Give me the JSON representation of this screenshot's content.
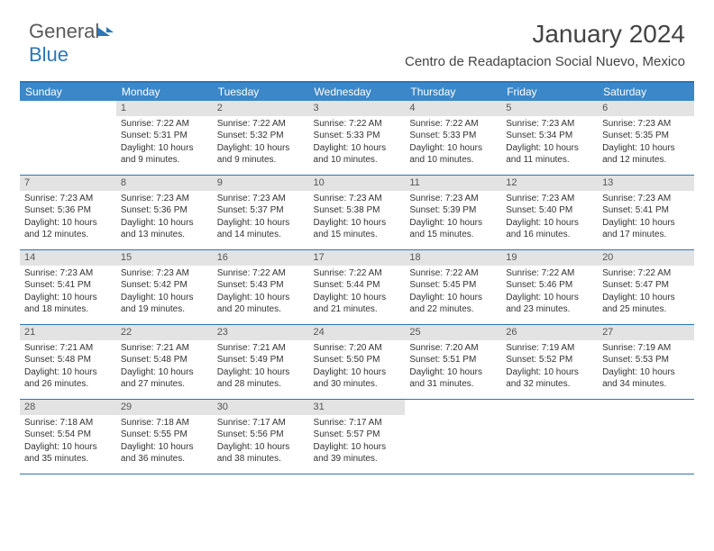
{
  "logo": {
    "text1": "General",
    "text2": "Blue"
  },
  "title": "January 2024",
  "location": "Centro de Readaptacion Social Nuevo, Mexico",
  "daynames": [
    "Sunday",
    "Monday",
    "Tuesday",
    "Wednesday",
    "Thursday",
    "Friday",
    "Saturday"
  ],
  "colors": {
    "header_bg": "#3b87c8",
    "border": "#2b76b8",
    "numbar": "#e3e3e3"
  },
  "weeks": [
    [
      {
        "n": "",
        "sr": "",
        "ss": "",
        "dl": ""
      },
      {
        "n": "1",
        "sr": "Sunrise: 7:22 AM",
        "ss": "Sunset: 5:31 PM",
        "dl": "Daylight: 10 hours and 9 minutes."
      },
      {
        "n": "2",
        "sr": "Sunrise: 7:22 AM",
        "ss": "Sunset: 5:32 PM",
        "dl": "Daylight: 10 hours and 9 minutes."
      },
      {
        "n": "3",
        "sr": "Sunrise: 7:22 AM",
        "ss": "Sunset: 5:33 PM",
        "dl": "Daylight: 10 hours and 10 minutes."
      },
      {
        "n": "4",
        "sr": "Sunrise: 7:22 AM",
        "ss": "Sunset: 5:33 PM",
        "dl": "Daylight: 10 hours and 10 minutes."
      },
      {
        "n": "5",
        "sr": "Sunrise: 7:23 AM",
        "ss": "Sunset: 5:34 PM",
        "dl": "Daylight: 10 hours and 11 minutes."
      },
      {
        "n": "6",
        "sr": "Sunrise: 7:23 AM",
        "ss": "Sunset: 5:35 PM",
        "dl": "Daylight: 10 hours and 12 minutes."
      }
    ],
    [
      {
        "n": "7",
        "sr": "Sunrise: 7:23 AM",
        "ss": "Sunset: 5:36 PM",
        "dl": "Daylight: 10 hours and 12 minutes."
      },
      {
        "n": "8",
        "sr": "Sunrise: 7:23 AM",
        "ss": "Sunset: 5:36 PM",
        "dl": "Daylight: 10 hours and 13 minutes."
      },
      {
        "n": "9",
        "sr": "Sunrise: 7:23 AM",
        "ss": "Sunset: 5:37 PM",
        "dl": "Daylight: 10 hours and 14 minutes."
      },
      {
        "n": "10",
        "sr": "Sunrise: 7:23 AM",
        "ss": "Sunset: 5:38 PM",
        "dl": "Daylight: 10 hours and 15 minutes."
      },
      {
        "n": "11",
        "sr": "Sunrise: 7:23 AM",
        "ss": "Sunset: 5:39 PM",
        "dl": "Daylight: 10 hours and 15 minutes."
      },
      {
        "n": "12",
        "sr": "Sunrise: 7:23 AM",
        "ss": "Sunset: 5:40 PM",
        "dl": "Daylight: 10 hours and 16 minutes."
      },
      {
        "n": "13",
        "sr": "Sunrise: 7:23 AM",
        "ss": "Sunset: 5:41 PM",
        "dl": "Daylight: 10 hours and 17 minutes."
      }
    ],
    [
      {
        "n": "14",
        "sr": "Sunrise: 7:23 AM",
        "ss": "Sunset: 5:41 PM",
        "dl": "Daylight: 10 hours and 18 minutes."
      },
      {
        "n": "15",
        "sr": "Sunrise: 7:23 AM",
        "ss": "Sunset: 5:42 PM",
        "dl": "Daylight: 10 hours and 19 minutes."
      },
      {
        "n": "16",
        "sr": "Sunrise: 7:22 AM",
        "ss": "Sunset: 5:43 PM",
        "dl": "Daylight: 10 hours and 20 minutes."
      },
      {
        "n": "17",
        "sr": "Sunrise: 7:22 AM",
        "ss": "Sunset: 5:44 PM",
        "dl": "Daylight: 10 hours and 21 minutes."
      },
      {
        "n": "18",
        "sr": "Sunrise: 7:22 AM",
        "ss": "Sunset: 5:45 PM",
        "dl": "Daylight: 10 hours and 22 minutes."
      },
      {
        "n": "19",
        "sr": "Sunrise: 7:22 AM",
        "ss": "Sunset: 5:46 PM",
        "dl": "Daylight: 10 hours and 23 minutes."
      },
      {
        "n": "20",
        "sr": "Sunrise: 7:22 AM",
        "ss": "Sunset: 5:47 PM",
        "dl": "Daylight: 10 hours and 25 minutes."
      }
    ],
    [
      {
        "n": "21",
        "sr": "Sunrise: 7:21 AM",
        "ss": "Sunset: 5:48 PM",
        "dl": "Daylight: 10 hours and 26 minutes."
      },
      {
        "n": "22",
        "sr": "Sunrise: 7:21 AM",
        "ss": "Sunset: 5:48 PM",
        "dl": "Daylight: 10 hours and 27 minutes."
      },
      {
        "n": "23",
        "sr": "Sunrise: 7:21 AM",
        "ss": "Sunset: 5:49 PM",
        "dl": "Daylight: 10 hours and 28 minutes."
      },
      {
        "n": "24",
        "sr": "Sunrise: 7:20 AM",
        "ss": "Sunset: 5:50 PM",
        "dl": "Daylight: 10 hours and 30 minutes."
      },
      {
        "n": "25",
        "sr": "Sunrise: 7:20 AM",
        "ss": "Sunset: 5:51 PM",
        "dl": "Daylight: 10 hours and 31 minutes."
      },
      {
        "n": "26",
        "sr": "Sunrise: 7:19 AM",
        "ss": "Sunset: 5:52 PM",
        "dl": "Daylight: 10 hours and 32 minutes."
      },
      {
        "n": "27",
        "sr": "Sunrise: 7:19 AM",
        "ss": "Sunset: 5:53 PM",
        "dl": "Daylight: 10 hours and 34 minutes."
      }
    ],
    [
      {
        "n": "28",
        "sr": "Sunrise: 7:18 AM",
        "ss": "Sunset: 5:54 PM",
        "dl": "Daylight: 10 hours and 35 minutes."
      },
      {
        "n": "29",
        "sr": "Sunrise: 7:18 AM",
        "ss": "Sunset: 5:55 PM",
        "dl": "Daylight: 10 hours and 36 minutes."
      },
      {
        "n": "30",
        "sr": "Sunrise: 7:17 AM",
        "ss": "Sunset: 5:56 PM",
        "dl": "Daylight: 10 hours and 38 minutes."
      },
      {
        "n": "31",
        "sr": "Sunrise: 7:17 AM",
        "ss": "Sunset: 5:57 PM",
        "dl": "Daylight: 10 hours and 39 minutes."
      },
      {
        "n": "",
        "sr": "",
        "ss": "",
        "dl": ""
      },
      {
        "n": "",
        "sr": "",
        "ss": "",
        "dl": ""
      },
      {
        "n": "",
        "sr": "",
        "ss": "",
        "dl": ""
      }
    ]
  ]
}
